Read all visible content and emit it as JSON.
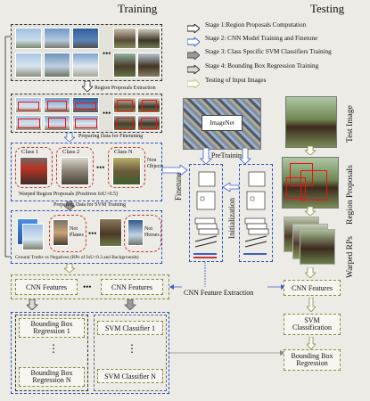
{
  "headers": {
    "training": "Training",
    "testing": "Testing"
  },
  "legend": [
    {
      "label": "Stage 1:Region Proposals Computation",
      "color": "#222222"
    },
    {
      "label": "Stage 2: CNN Model Training and Finetune",
      "color": "#3b5fd0"
    },
    {
      "label": "Stage 3: Class Specific SVM Classifiers Training",
      "color": "#8a8a8a"
    },
    {
      "label": "Stage 4: Bounding Box Regression Training",
      "color": "#5a5a5a"
    },
    {
      "label": "Testing of Input Images",
      "color": "#c7c27a"
    }
  ],
  "labels": {
    "region_extraction": "Region Proposals Extraction",
    "finetune_data": "Preparing Data for Finetuning",
    "warped_rp": "Warped Region Proposals (Positives IoU>0.5)",
    "svm_data": "Preparing Data for SVM Training",
    "gt_negatives": "Ground Truths vs Negatives (RPs of IoU<0.3 and Backgrounds)",
    "imagenet": "ImageNet",
    "pretraining": "PreTraining",
    "finetune": "Finetune",
    "initialization": "Initialization",
    "cnn_feature_extraction": "CNN Feature Extraction",
    "ellipsis": "•••",
    "vdots": "⋮"
  },
  "classes": {
    "class1": "Class 1",
    "class2": "Class 2",
    "classN": "Class N",
    "non_objects": "Non Objects",
    "not_planes": "Not Planes",
    "not_horses": "Not Horses"
  },
  "modules": {
    "cnn_features_a": "CNN Features",
    "cnn_features_b": "CNN Features",
    "cnn_features_test": "CNN Features",
    "bbox_reg_1": "Bounding Box Regression 1",
    "bbox_reg_n": "Bounding Box Regression N",
    "svm_1": "SVM Classifier 1",
    "svm_n": "SVM Classifier N",
    "svm_classification": "SVM Classification",
    "bbox_regression": "Bounding Box Regression"
  },
  "side_labels": {
    "test_image": "Test Image",
    "region_proposals": "Region Proposals",
    "warped_rps": "Warped RPs"
  }
}
